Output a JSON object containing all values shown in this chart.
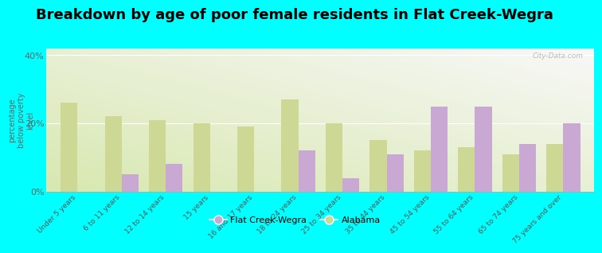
{
  "title": "Breakdown by age of poor female residents in Flat Creek-Wegra",
  "categories": [
    "Under 5 years",
    "6 to 11 years",
    "12 to 14 years",
    "15 years",
    "16 and 17 years",
    "18 to 24 years",
    "25 to 34 years",
    "35 to 44 years",
    "45 to 54 years",
    "55 to 64 years",
    "65 to 74 years",
    "75 years and over"
  ],
  "flat_creek": [
    0,
    5,
    8,
    0,
    0,
    12,
    4,
    11,
    25,
    25,
    14,
    20
  ],
  "alabama": [
    26,
    22,
    21,
    20,
    19,
    27,
    20,
    15,
    12,
    13,
    11,
    14
  ],
  "flat_creek_color": "#c9a8d4",
  "alabama_color": "#cdd894",
  "ylabel": "percentage\nbelow poverty\nlevel",
  "ylim": [
    0,
    42
  ],
  "yticks": [
    0,
    20,
    40
  ],
  "ytick_labels": [
    "0%",
    "20%",
    "40%"
  ],
  "background_color": "#00ffff",
  "legend_fc": "Flat Creek-Wegra",
  "legend_al": "Alabama",
  "title_fontsize": 13,
  "bar_width": 0.38,
  "watermark": "City-Data.com"
}
